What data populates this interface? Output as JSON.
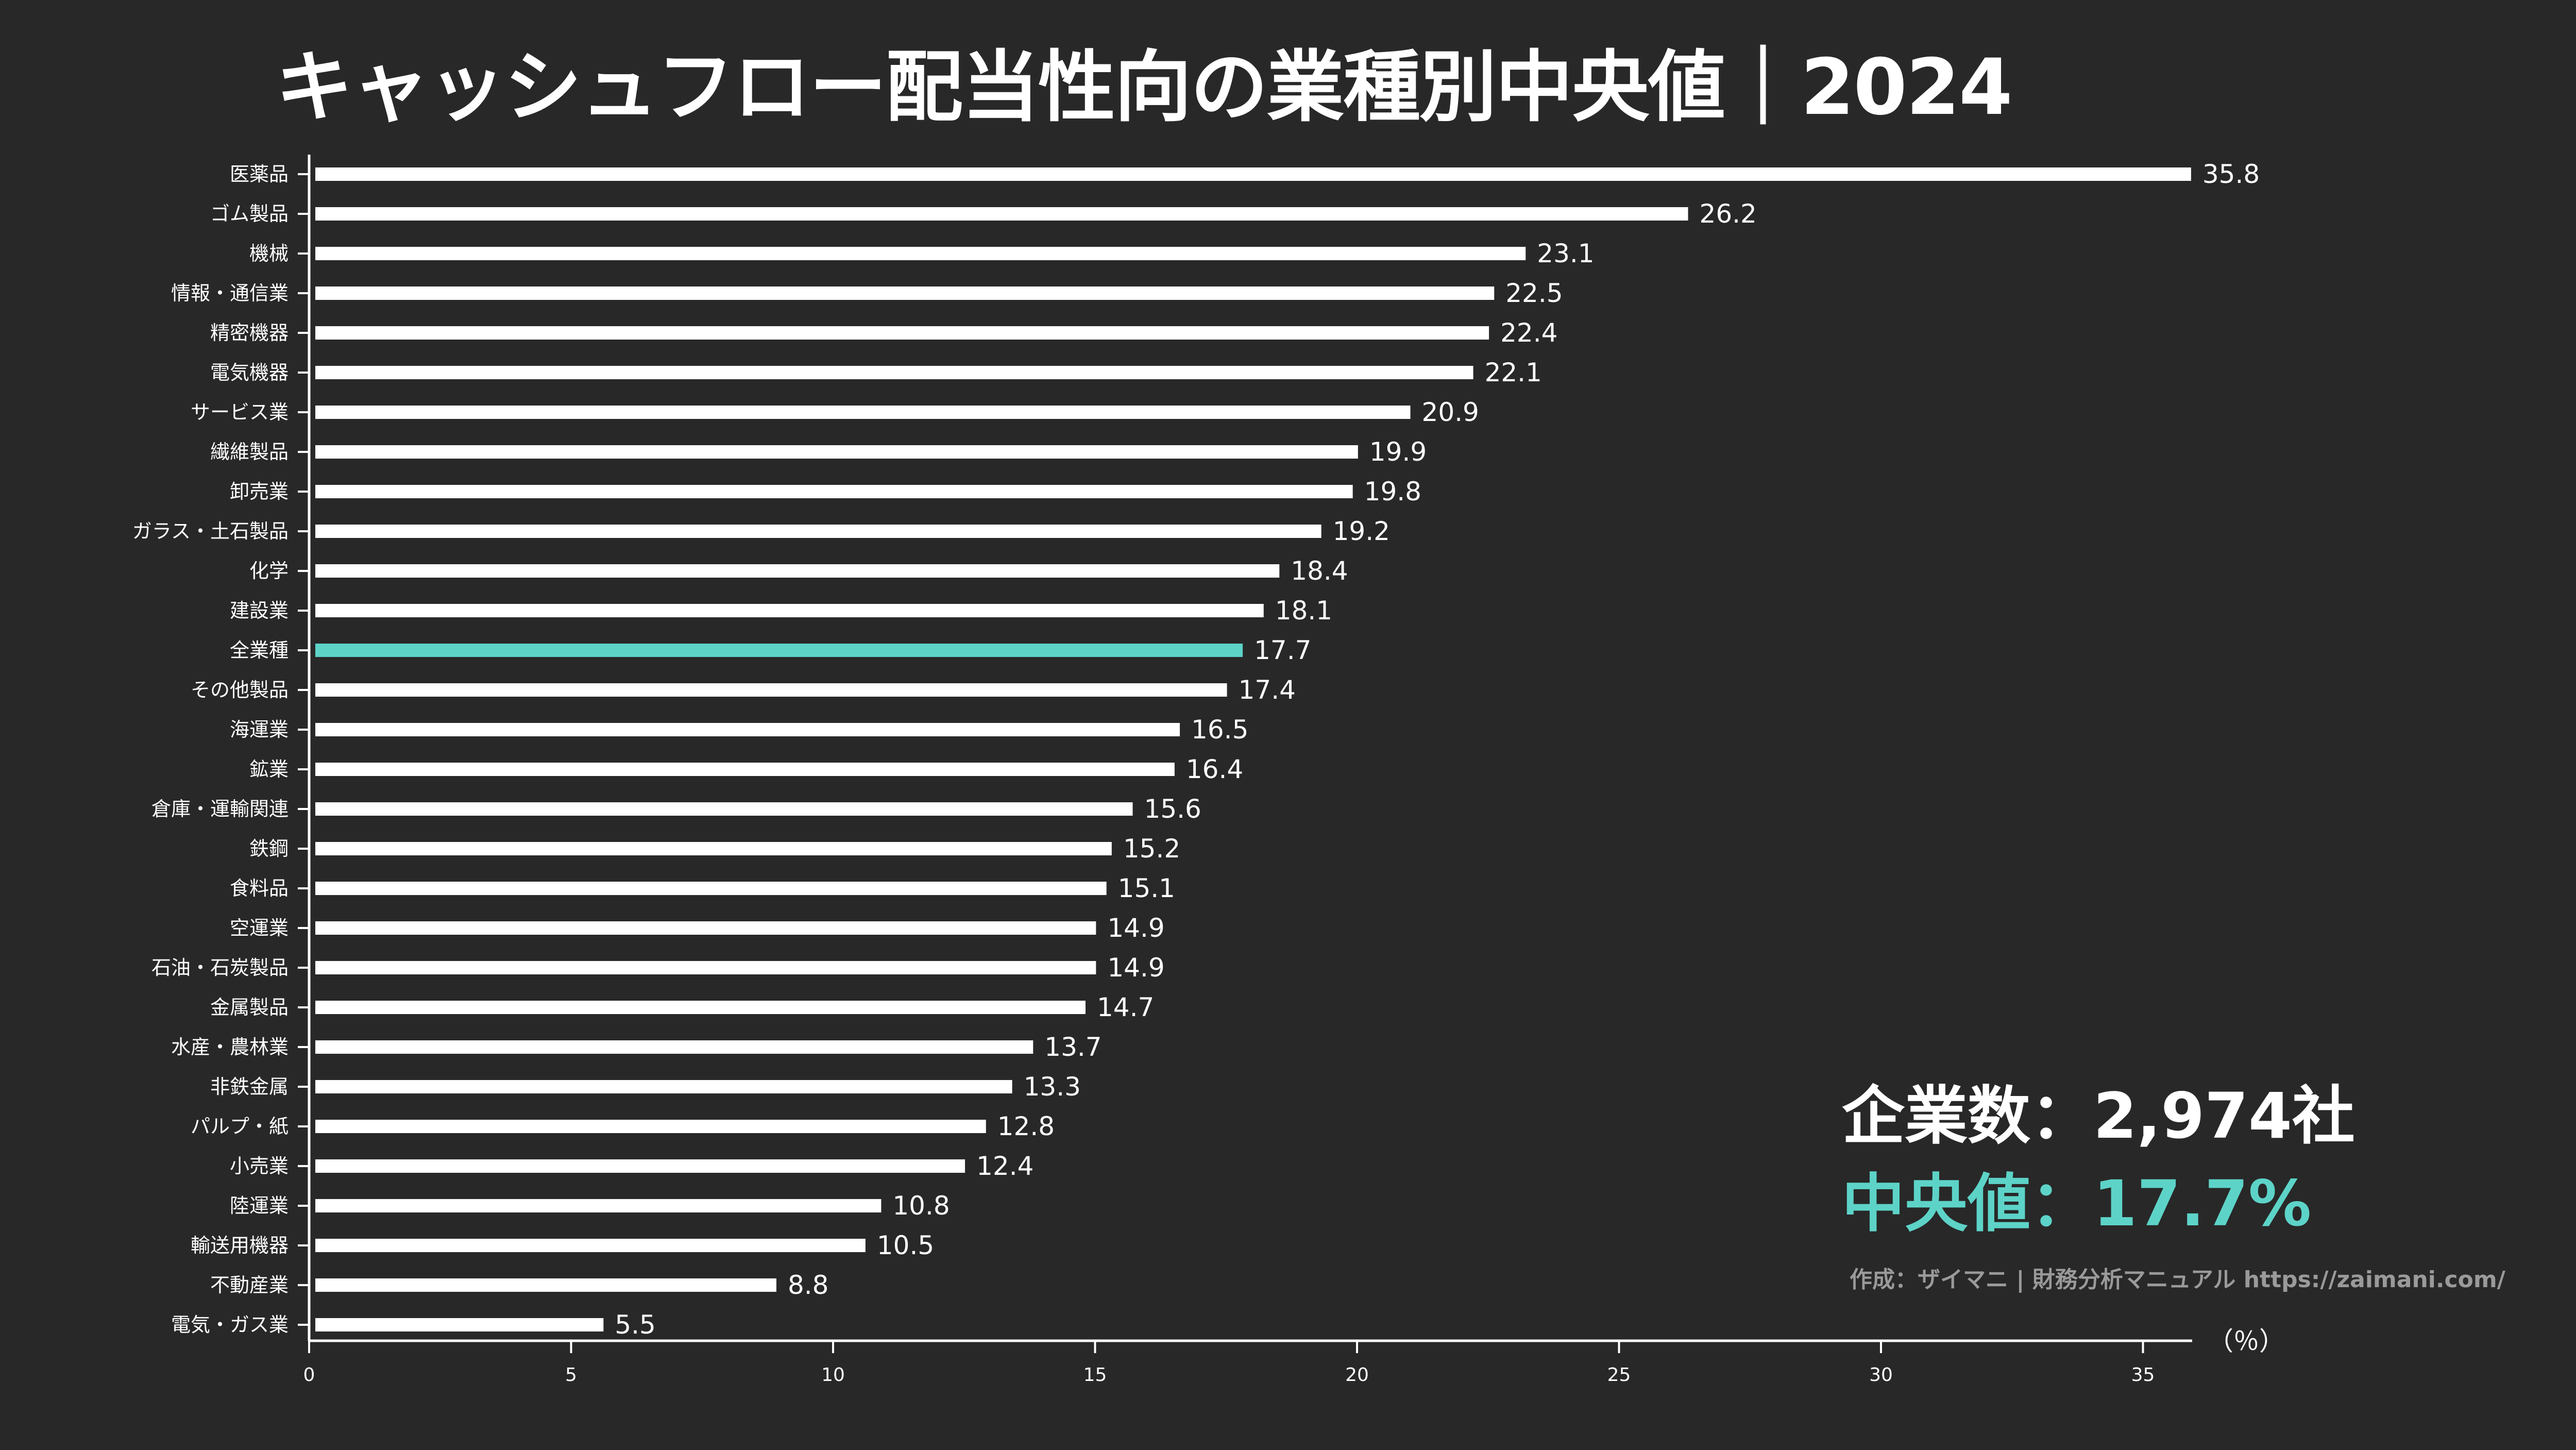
{
  "title": "キャッシュフロー配当性向の業種別中央値｜2024",
  "colors": {
    "background": "#282828",
    "bar": "#ffffff",
    "highlight": "#5dd3c8",
    "credit": "#9a9a9a"
  },
  "summary": {
    "count_text": "企業数：2,974社",
    "median_text": "中央値：17.7%"
  },
  "credit": "作成：ザイマニ | 財務分析マニュアル https://zaimani.com/",
  "chart_data": {
    "type": "bar",
    "orientation": "horizontal",
    "title": "キャッシュフロー配当性向の業種別中央値｜2024",
    "xlabel": "（％）",
    "ylabel": "",
    "xlim": [
      0,
      35.8
    ],
    "xticks": [
      0,
      5,
      10,
      15,
      20,
      25,
      30,
      35
    ],
    "grid": false,
    "highlight_category": "全業種",
    "categories": [
      "医薬品",
      "ゴム製品",
      "機械",
      "情報・通信業",
      "精密機器",
      "電気機器",
      "サービス業",
      "繊維製品",
      "卸売業",
      "ガラス・土石製品",
      "化学",
      "建設業",
      "全業種",
      "その他製品",
      "海運業",
      "鉱業",
      "倉庫・運輸関連",
      "鉄鋼",
      "食料品",
      "空運業",
      "石油・石炭製品",
      "金属製品",
      "水産・農林業",
      "非鉄金属",
      "パルプ・紙",
      "小売業",
      "陸運業",
      "輸送用機器",
      "不動産業",
      "電気・ガス業"
    ],
    "values": [
      35.8,
      26.2,
      23.1,
      22.5,
      22.4,
      22.1,
      20.9,
      19.9,
      19.8,
      19.2,
      18.4,
      18.1,
      17.7,
      17.4,
      16.5,
      16.4,
      15.6,
      15.2,
      15.1,
      14.9,
      14.9,
      14.7,
      13.7,
      13.3,
      12.8,
      12.4,
      10.8,
      10.5,
      8.8,
      5.5
    ]
  }
}
